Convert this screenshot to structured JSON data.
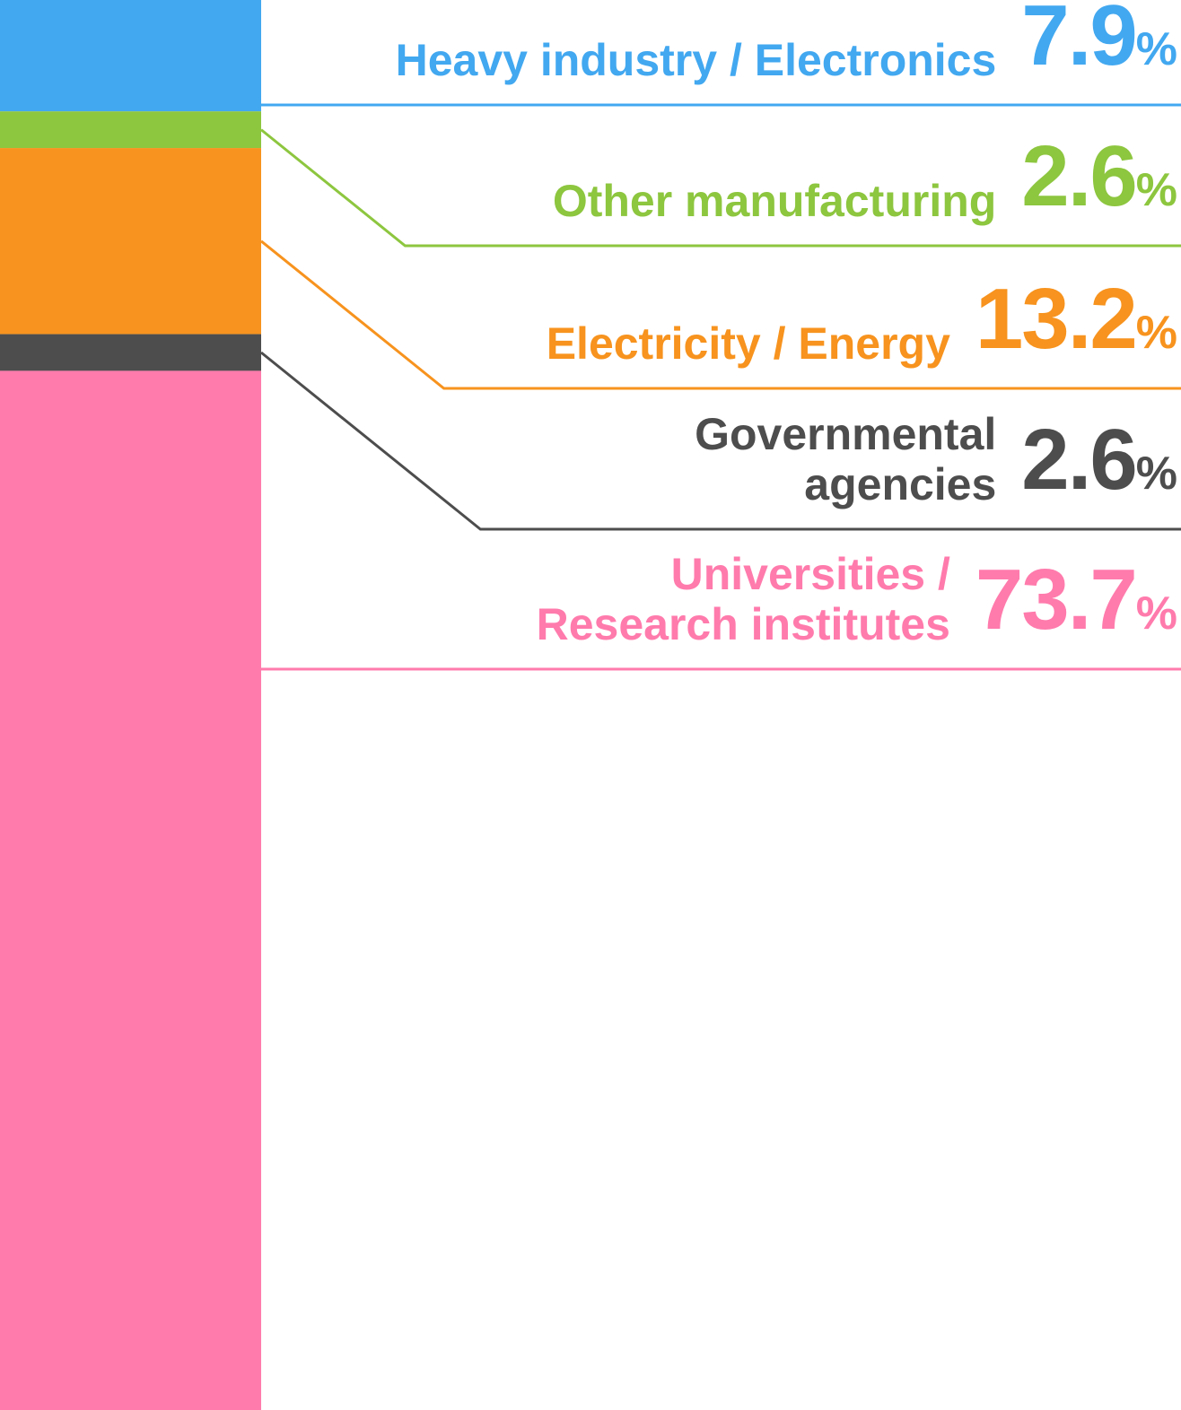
{
  "chart_data": {
    "type": "stacked-bar",
    "categories": [
      "Heavy industry / Electronics",
      "Other manufacturing",
      "Electricity / Energy",
      "Governmental agencies",
      "Universities / Research institutes"
    ],
    "values": [
      7.9,
      2.6,
      13.2,
      2.6,
      73.7
    ],
    "value_labels": [
      "7.9%",
      "2.6%",
      "13.2%",
      "2.6%",
      "73.7%"
    ],
    "colors": [
      "#42a8f0",
      "#8dc63f",
      "#f7931e",
      "#4d4d4d",
      "#ff7bac"
    ]
  }
}
